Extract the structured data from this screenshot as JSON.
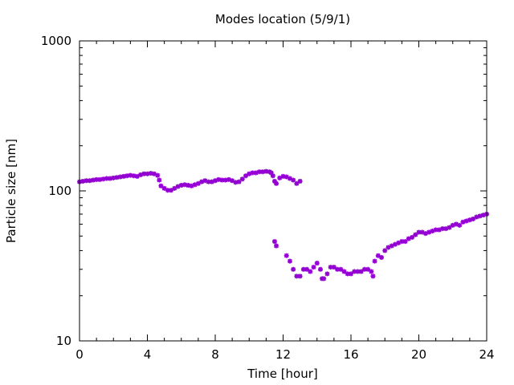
{
  "chart_data": {
    "type": "scatter",
    "title": "Modes location (5/9/1)",
    "xlabel": "Time [hour]",
    "ylabel": "Particle size [nm]",
    "xlim": [
      0,
      24
    ],
    "ylim": [
      10,
      1000
    ],
    "yscale": "log",
    "grid": false,
    "legend": "none",
    "marker_color": "#9400d3",
    "x_ticks": [
      0,
      4,
      8,
      12,
      16,
      20,
      24
    ],
    "x_tick_labels": [
      "0",
      "4",
      "8",
      "12",
      "16",
      "20",
      "24"
    ],
    "y_ticks": [
      10,
      100,
      1000
    ],
    "y_tick_labels": [
      "10",
      "100",
      "1000"
    ],
    "series": [
      {
        "points": [
          [
            0.0,
            115
          ],
          [
            0.2,
            116
          ],
          [
            0.4,
            117
          ],
          [
            0.6,
            117
          ],
          [
            0.8,
            118
          ],
          [
            1.0,
            119
          ],
          [
            1.2,
            119
          ],
          [
            1.4,
            120
          ],
          [
            1.6,
            121
          ],
          [
            1.8,
            121
          ],
          [
            2.0,
            122
          ],
          [
            2.2,
            123
          ],
          [
            2.4,
            124
          ],
          [
            2.6,
            125
          ],
          [
            2.8,
            126
          ],
          [
            3.0,
            127
          ],
          [
            3.2,
            126
          ],
          [
            3.4,
            125
          ],
          [
            3.6,
            128
          ],
          [
            3.8,
            130
          ],
          [
            4.0,
            130
          ],
          [
            4.2,
            131
          ],
          [
            4.4,
            130
          ],
          [
            4.6,
            127
          ],
          [
            4.7,
            118
          ],
          [
            4.8,
            108
          ],
          [
            5.0,
            104
          ],
          [
            5.2,
            101
          ],
          [
            5.4,
            101
          ],
          [
            5.6,
            104
          ],
          [
            5.8,
            107
          ],
          [
            6.0,
            109
          ],
          [
            6.2,
            110
          ],
          [
            6.4,
            109
          ],
          [
            6.6,
            108
          ],
          [
            6.8,
            110
          ],
          [
            7.0,
            112
          ],
          [
            7.2,
            115
          ],
          [
            7.4,
            117
          ],
          [
            7.6,
            115
          ],
          [
            7.8,
            115
          ],
          [
            8.0,
            117
          ],
          [
            8.2,
            119
          ],
          [
            8.4,
            118
          ],
          [
            8.6,
            118
          ],
          [
            8.8,
            119
          ],
          [
            9.0,
            117
          ],
          [
            9.2,
            114
          ],
          [
            9.4,
            115
          ],
          [
            9.6,
            120
          ],
          [
            9.8,
            126
          ],
          [
            10.0,
            130
          ],
          [
            10.2,
            132
          ],
          [
            10.4,
            132
          ],
          [
            10.6,
            134
          ],
          [
            10.8,
            134
          ],
          [
            11.0,
            135
          ],
          [
            11.2,
            134
          ],
          [
            11.3,
            132
          ],
          [
            11.4,
            126
          ],
          [
            11.5,
            116
          ],
          [
            11.6,
            112
          ],
          [
            11.8,
            122
          ],
          [
            12.0,
            125
          ],
          [
            12.2,
            124
          ],
          [
            12.4,
            121
          ],
          [
            12.6,
            118
          ],
          [
            12.8,
            112
          ],
          [
            13.0,
            116
          ],
          [
            11.5,
            46
          ],
          [
            11.6,
            43
          ],
          [
            12.2,
            37
          ],
          [
            12.4,
            34
          ],
          [
            12.6,
            30
          ],
          [
            12.8,
            27
          ],
          [
            13.0,
            27
          ],
          [
            13.2,
            30
          ],
          [
            13.4,
            30
          ],
          [
            13.6,
            29
          ],
          [
            13.8,
            31
          ],
          [
            14.0,
            33
          ],
          [
            14.2,
            30
          ],
          [
            14.3,
            26
          ],
          [
            14.4,
            26
          ],
          [
            14.6,
            28
          ],
          [
            14.8,
            31
          ],
          [
            15.0,
            31
          ],
          [
            15.2,
            30
          ],
          [
            15.4,
            30
          ],
          [
            15.6,
            29
          ],
          [
            15.8,
            28
          ],
          [
            16.0,
            28
          ],
          [
            16.2,
            29
          ],
          [
            16.4,
            29
          ],
          [
            16.6,
            29
          ],
          [
            16.8,
            30
          ],
          [
            17.0,
            30
          ],
          [
            17.2,
            29
          ],
          [
            17.3,
            27
          ],
          [
            17.4,
            34
          ],
          [
            17.6,
            37
          ],
          [
            17.8,
            36
          ],
          [
            18.0,
            40
          ],
          [
            18.2,
            42
          ],
          [
            18.4,
            43
          ],
          [
            18.6,
            44
          ],
          [
            18.8,
            45
          ],
          [
            19.0,
            46
          ],
          [
            19.2,
            46
          ],
          [
            19.4,
            48
          ],
          [
            19.6,
            49
          ],
          [
            19.8,
            51
          ],
          [
            20.0,
            53
          ],
          [
            20.2,
            53
          ],
          [
            20.4,
            52
          ],
          [
            20.6,
            53
          ],
          [
            20.8,
            54
          ],
          [
            21.0,
            55
          ],
          [
            21.2,
            55
          ],
          [
            21.4,
            56
          ],
          [
            21.6,
            56
          ],
          [
            21.8,
            57
          ],
          [
            22.0,
            59
          ],
          [
            22.2,
            60
          ],
          [
            22.4,
            59
          ],
          [
            22.6,
            62
          ],
          [
            22.8,
            63
          ],
          [
            23.0,
            64
          ],
          [
            23.2,
            65
          ],
          [
            23.4,
            67
          ],
          [
            23.6,
            68
          ],
          [
            23.8,
            69
          ],
          [
            24.0,
            70
          ]
        ]
      }
    ]
  }
}
